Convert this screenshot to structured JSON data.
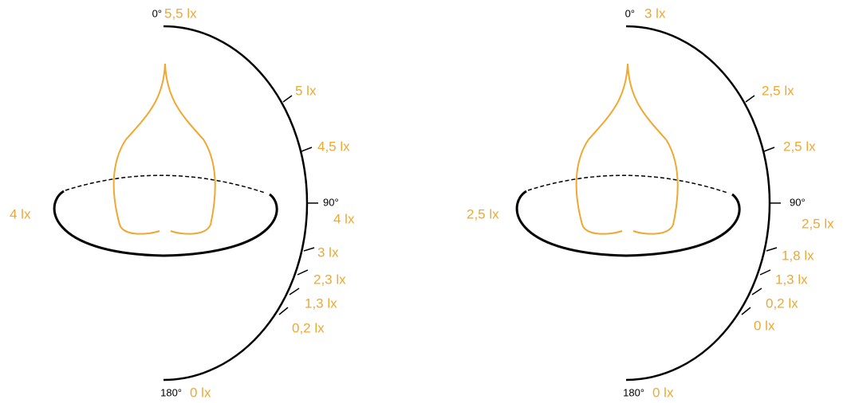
{
  "panels": [
    {
      "labels": [
        "0°",
        "5,5 lx",
        "5 lx",
        "4,5 lx",
        "90°",
        "4 lx",
        "3 lx",
        "2,3 lx",
        "1,3 lx",
        "0,2 lx",
        "180°",
        "0 lx"
      ],
      "side_label": "4 lx"
    },
    {
      "labels": [
        "0°",
        "3 lx",
        "2,5 lx",
        "2,5 lx",
        "90°",
        "2,5 lx",
        "1,8 lx",
        "1,3 lx",
        "0,2 lx",
        "0 lx",
        "180°",
        "0 lx"
      ],
      "side_label": "2,5 lx"
    }
  ]
}
